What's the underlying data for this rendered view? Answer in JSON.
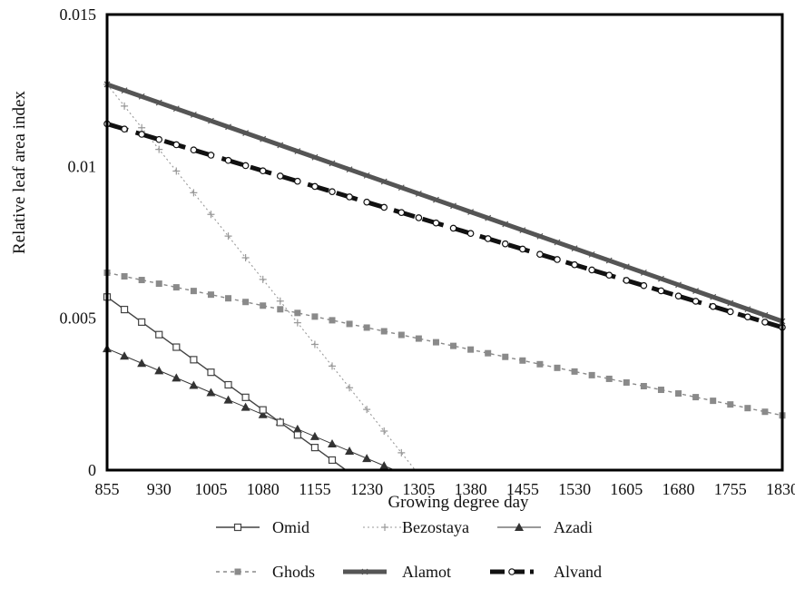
{
  "chart_data": {
    "type": "line",
    "xlabel": "Growing degree day",
    "ylabel": "Relative leaf area index",
    "x_ticks": [
      "855",
      "930",
      "1005",
      "1080",
      "1155",
      "1230",
      "1305",
      "1380",
      "1455",
      "1530",
      "1605",
      "1680",
      "1755",
      "1830"
    ],
    "y_ticks": [
      "0",
      "0.005",
      "0.01",
      "0.015"
    ],
    "xlim": [
      855,
      1830
    ],
    "ylim": [
      0,
      0.015
    ],
    "grid": false,
    "legend_position": "bottom",
    "series": [
      {
        "name": "Omid",
        "marker": "square-open",
        "line": "thin-solid",
        "color": "#444444",
        "x": [
          855,
          1200
        ],
        "y": [
          0.0057,
          0.0
        ]
      },
      {
        "name": "Bezostaya",
        "marker": "plus",
        "line": "dotted-light",
        "color": "#999999",
        "x": [
          855,
          1300
        ],
        "y": [
          0.0127,
          0.0
        ]
      },
      {
        "name": "Azadi",
        "marker": "triangle",
        "line": "thin-solid-light",
        "color": "#333333",
        "x": [
          855,
          1270
        ],
        "y": [
          0.004,
          0.0
        ]
      },
      {
        "name": "Ghods",
        "marker": "square",
        "line": "dashed-light",
        "color": "#8a8a8a",
        "x": [
          855,
          1830
        ],
        "y": [
          0.0065,
          0.0018
        ]
      },
      {
        "name": "Alamot",
        "marker": "x",
        "line": "thick-solid",
        "color": "#555555",
        "x": [
          855,
          1830
        ],
        "y": [
          0.0127,
          0.0049
        ]
      },
      {
        "name": "Alvand",
        "marker": "circle-open",
        "line": "thick-dashed",
        "color": "#111111",
        "x": [
          855,
          1830
        ],
        "y": [
          0.0114,
          0.0047
        ]
      }
    ]
  }
}
